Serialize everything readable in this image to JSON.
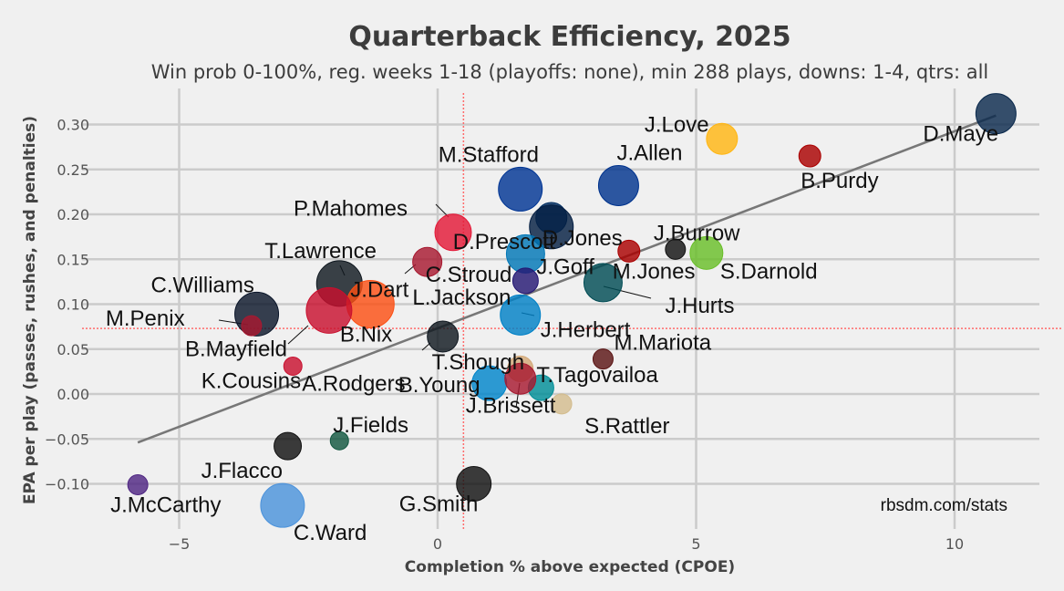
{
  "chart_data": {
    "type": "scatter",
    "title": "Quarterback Efficiency, 2025",
    "subtitle": "Win prob 0-100%, reg. weeks 1-18 (playoffs: none), min 288 plays, downs: 1-4, qtrs: all",
    "xlabel": "Completion % above expected (CPOE)",
    "ylabel": "EPA per play (passes, rushes, and penalties)",
    "credit": "rbsdm.com/stats",
    "xlim": [
      -6.8,
      11.7
    ],
    "ylim": [
      -0.135,
      0.335
    ],
    "x_ticks": [
      -5,
      0,
      5,
      10
    ],
    "y_ticks": [
      -0.1,
      -0.05,
      0.0,
      0.05,
      0.1,
      0.15,
      0.2,
      0.25,
      0.3
    ],
    "grid": true,
    "reference_lines": {
      "x": 0.5,
      "y": 0.073,
      "color": "#ff6b6b"
    },
    "trend_line": {
      "x": [
        -5.8,
        10.8
      ],
      "y": [
        -0.054,
        0.31
      ]
    },
    "points": [
      {
        "name": "D.Maye",
        "x": 10.8,
        "y": 0.312,
        "color": "#0b2a4d"
      },
      {
        "name": "J.Love",
        "x": 5.5,
        "y": 0.284,
        "color": "#ffb612"
      },
      {
        "name": "B.Purdy",
        "x": 7.2,
        "y": 0.265,
        "color": "#aa0000"
      },
      {
        "name": "M.Stafford",
        "x": 1.6,
        "y": 0.228,
        "color": "#003594"
      },
      {
        "name": "J.Allen",
        "x": 3.5,
        "y": 0.232,
        "color": "#00338d"
      },
      {
        "name": "D.Jones",
        "x": 2.2,
        "y": 0.196,
        "color": "#002c5f"
      },
      {
        "name": "P.Mahomes",
        "x": 0.3,
        "y": 0.18,
        "color": "#e31837"
      },
      {
        "name": "D.Prescott",
        "x": 2.2,
        "y": 0.186,
        "color": "#041e42"
      },
      {
        "name": "T.Lawrence",
        "x": -1.9,
        "y": 0.123,
        "color": "#101820"
      },
      {
        "name": "J.Goff",
        "x": 1.7,
        "y": 0.156,
        "color": "#0076b6"
      },
      {
        "name": "C.Stroud",
        "x": -0.2,
        "y": 0.147,
        "color": "#a71930"
      },
      {
        "name": "J.Burrow",
        "x": 4.6,
        "y": 0.161,
        "color": "#111111"
      },
      {
        "name": "S.Darnold",
        "x": 5.2,
        "y": 0.157,
        "color": "#69be28"
      },
      {
        "name": "M.Jones",
        "x": 3.7,
        "y": 0.159,
        "color": "#aa0000"
      },
      {
        "name": "J.Hurts",
        "x": 3.2,
        "y": 0.124,
        "color": "#004c54"
      },
      {
        "name": "C.Williams",
        "x": -3.5,
        "y": 0.089,
        "color": "#0b162a"
      },
      {
        "name": "J.Dart",
        "x": -1.3,
        "y": 0.1,
        "color": "#fb4f14"
      },
      {
        "name": "L.Jackson",
        "x": 1.7,
        "y": 0.126,
        "color": "#241773"
      },
      {
        "name": "M.Penix",
        "x": -3.6,
        "y": 0.076,
        "color": "#a71930"
      },
      {
        "name": "B.Nix",
        "x": -2.1,
        "y": 0.093,
        "color": "#c8102e"
      },
      {
        "name": "J.Herbert",
        "x": 1.6,
        "y": 0.088,
        "color": "#0080c6"
      },
      {
        "name": "B.Mayfield",
        "x": -1.8,
        "y": 0.115,
        "color": "#d50a0a"
      },
      {
        "name": "T.Shough",
        "x": 0.1,
        "y": 0.064,
        "color": "#101820"
      },
      {
        "name": "A.Rodgers",
        "x": -2.8,
        "y": 0.031,
        "color": "#c8102e"
      },
      {
        "name": "M.Mariota",
        "x": 3.2,
        "y": 0.039,
        "color": "#5a1414"
      },
      {
        "name": "B.Young",
        "x": 1.0,
        "y": 0.012,
        "color": "#0085ca"
      },
      {
        "name": "J.Brissett",
        "x": 1.6,
        "y": 0.028,
        "color": "#d3a877"
      },
      {
        "name": "T.Tagovailoa",
        "x": 2.0,
        "y": 0.007,
        "color": "#008e97"
      },
      {
        "name": "S.Rattler",
        "x": 2.4,
        "y": -0.011,
        "color": "#d3bc8d"
      },
      {
        "name": "K.Cousins",
        "x": 1.6,
        "y": 0.017,
        "color": "#a71930"
      },
      {
        "name": "J.Fields",
        "x": -1.9,
        "y": -0.052,
        "color": "#125740"
      },
      {
        "name": "J.Flacco",
        "x": -2.9,
        "y": -0.058,
        "color": "#111111"
      },
      {
        "name": "J.McCarthy",
        "x": -5.8,
        "y": -0.101,
        "color": "#4f2683"
      },
      {
        "name": "C.Ward",
        "x": -3.0,
        "y": -0.124,
        "color": "#4b92db"
      },
      {
        "name": "G.Smith",
        "x": 0.7,
        "y": -0.1,
        "color": "#111111"
      }
    ]
  }
}
